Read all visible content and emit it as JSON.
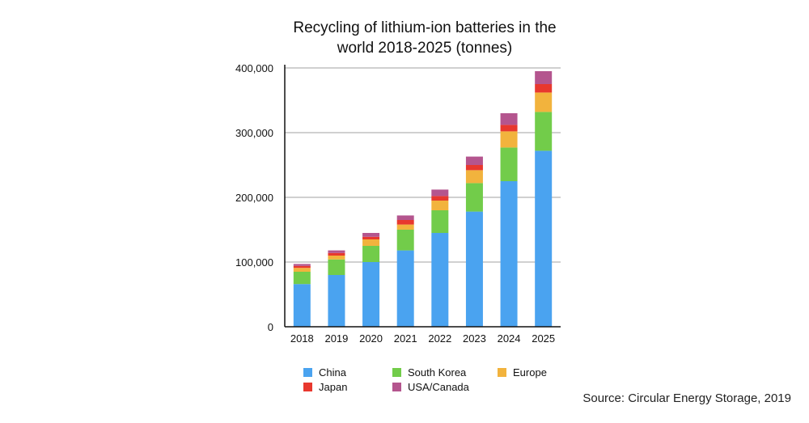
{
  "chart_data": {
    "type": "bar",
    "stacked": true,
    "title": "Recycling of lithium-ion batteries in the world 2018-2025 (tonnes)",
    "categories": [
      "2018",
      "2019",
      "2020",
      "2021",
      "2022",
      "2023",
      "2024",
      "2025"
    ],
    "series": [
      {
        "name": "China",
        "color": "#4aa3f0",
        "values": [
          66000,
          80000,
          100000,
          118000,
          145000,
          178000,
          225000,
          272000
        ]
      },
      {
        "name": "South Korea",
        "color": "#72cc4a",
        "values": [
          19000,
          24000,
          25000,
          32000,
          35000,
          44000,
          52000,
          60000
        ]
      },
      {
        "name": "Europe",
        "color": "#f2b33d",
        "values": [
          6000,
          6000,
          10000,
          8000,
          15000,
          20000,
          25000,
          30000
        ]
      },
      {
        "name": "Japan",
        "color": "#e8382e",
        "values": [
          3000,
          4000,
          4000,
          7000,
          7000,
          8000,
          10000,
          13000
        ]
      },
      {
        "name": "USA/Canada",
        "color": "#b4558e",
        "values": [
          3000,
          4000,
          6000,
          7000,
          10000,
          13000,
          18000,
          20000
        ]
      }
    ],
    "legend_order": [
      "China",
      "South Korea",
      "Europe",
      "Japan",
      "USA/Canada"
    ],
    "y_ticks": [
      "0",
      "100,000",
      "200,000",
      "300,000",
      "400,000"
    ],
    "ylim": [
      0,
      400000
    ],
    "grid": true,
    "legend_position": "bottom"
  },
  "source_note": "Source: Circular Energy Storage, 2019"
}
